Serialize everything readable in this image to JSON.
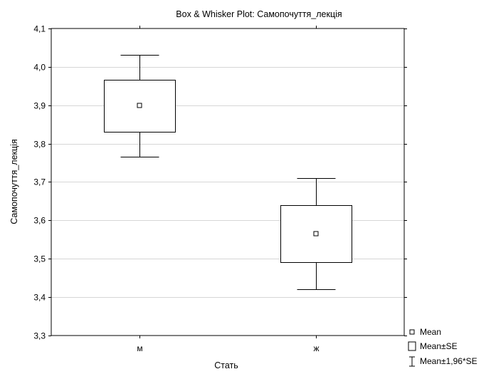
{
  "chart_data": {
    "type": "box",
    "title": "Box & Whisker Plot: Самопочуття_лекція",
    "xlabel": "Стать",
    "ylabel": "Самопочуття_лекція",
    "ylim": [
      3.3,
      4.1
    ],
    "yticks": [
      3.3,
      3.4,
      3.5,
      3.6,
      3.7,
      3.8,
      3.9,
      4.0,
      4.1
    ],
    "ytick_labels": [
      "3,3",
      "3,4",
      "3,5",
      "3,6",
      "3,7",
      "3,8",
      "3,9",
      "4,0",
      "4,1"
    ],
    "grid": true,
    "categories": [
      "м",
      "ж"
    ],
    "boxes": [
      {
        "category": "м",
        "mean": 3.899,
        "se_low": 3.831,
        "se_high": 3.967,
        "ci_low": 3.765,
        "ci_high": 4.032
      },
      {
        "category": "ж",
        "mean": 3.565,
        "se_low": 3.492,
        "se_high": 3.639,
        "ci_low": 3.421,
        "ci_high": 3.71
      }
    ],
    "legend": {
      "placement": "bottom-right",
      "items": [
        "Mean",
        "Mean±SE",
        "Mean±1,96*SE"
      ]
    }
  }
}
